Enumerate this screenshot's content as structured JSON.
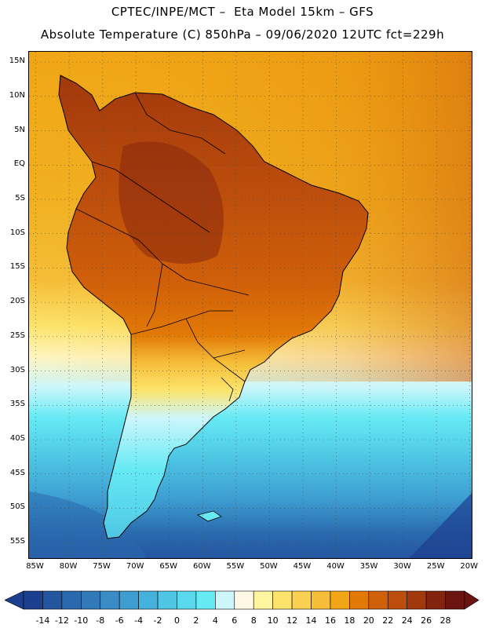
{
  "header": {
    "line1": "CPTEC/INPE/MCT –  Eta Model 15km – GFS",
    "line2": "Absolute Temperature (C) 850hPa – 09/06/2020 12UTC fct=229h"
  },
  "map": {
    "lat_labels": [
      "15N",
      "10N",
      "5N",
      "EQ",
      "5S",
      "10S",
      "15S",
      "20S",
      "25S",
      "30S",
      "35S",
      "40S",
      "45S",
      "50S",
      "55S"
    ],
    "lat_values": [
      15,
      10,
      5,
      0,
      -5,
      -10,
      -15,
      -20,
      -25,
      -30,
      -35,
      -40,
      -45,
      -50,
      -55
    ],
    "lon_labels": [
      "85W",
      "80W",
      "75W",
      "70W",
      "65W",
      "60W",
      "55W",
      "50W",
      "45W",
      "40W",
      "35W",
      "30W",
      "25W",
      "20W"
    ],
    "lon_values": [
      -85,
      -80,
      -75,
      -70,
      -65,
      -60,
      -55,
      -50,
      -45,
      -40,
      -35,
      -30,
      -25,
      -20
    ],
    "lon_range": [
      -86,
      -19.5
    ],
    "lat_range": [
      -57.5,
      16.5
    ]
  },
  "colorbar": {
    "labels": [
      "-14",
      "-12",
      "-10",
      "-8",
      "-6",
      "-4",
      "-2",
      "0",
      "2",
      "4",
      "6",
      "8",
      "10",
      "12",
      "14",
      "16",
      "18",
      "20",
      "22",
      "24",
      "26",
      "28"
    ],
    "colors": [
      "#1c3f8e",
      "#24559f",
      "#2a69ad",
      "#3279b8",
      "#3a8cc6",
      "#3e9ed2",
      "#44b2dc",
      "#4ec6e4",
      "#5ad8ec",
      "#66eaf4",
      "#cdf6fb",
      "#fff8e6",
      "#fff59e",
      "#fce46c",
      "#f9d051",
      "#f5bd38",
      "#f0a616",
      "#e27906",
      "#d0600a",
      "#bc4d0c",
      "#a2390c",
      "#83240e",
      "#6b1410"
    ]
  }
}
